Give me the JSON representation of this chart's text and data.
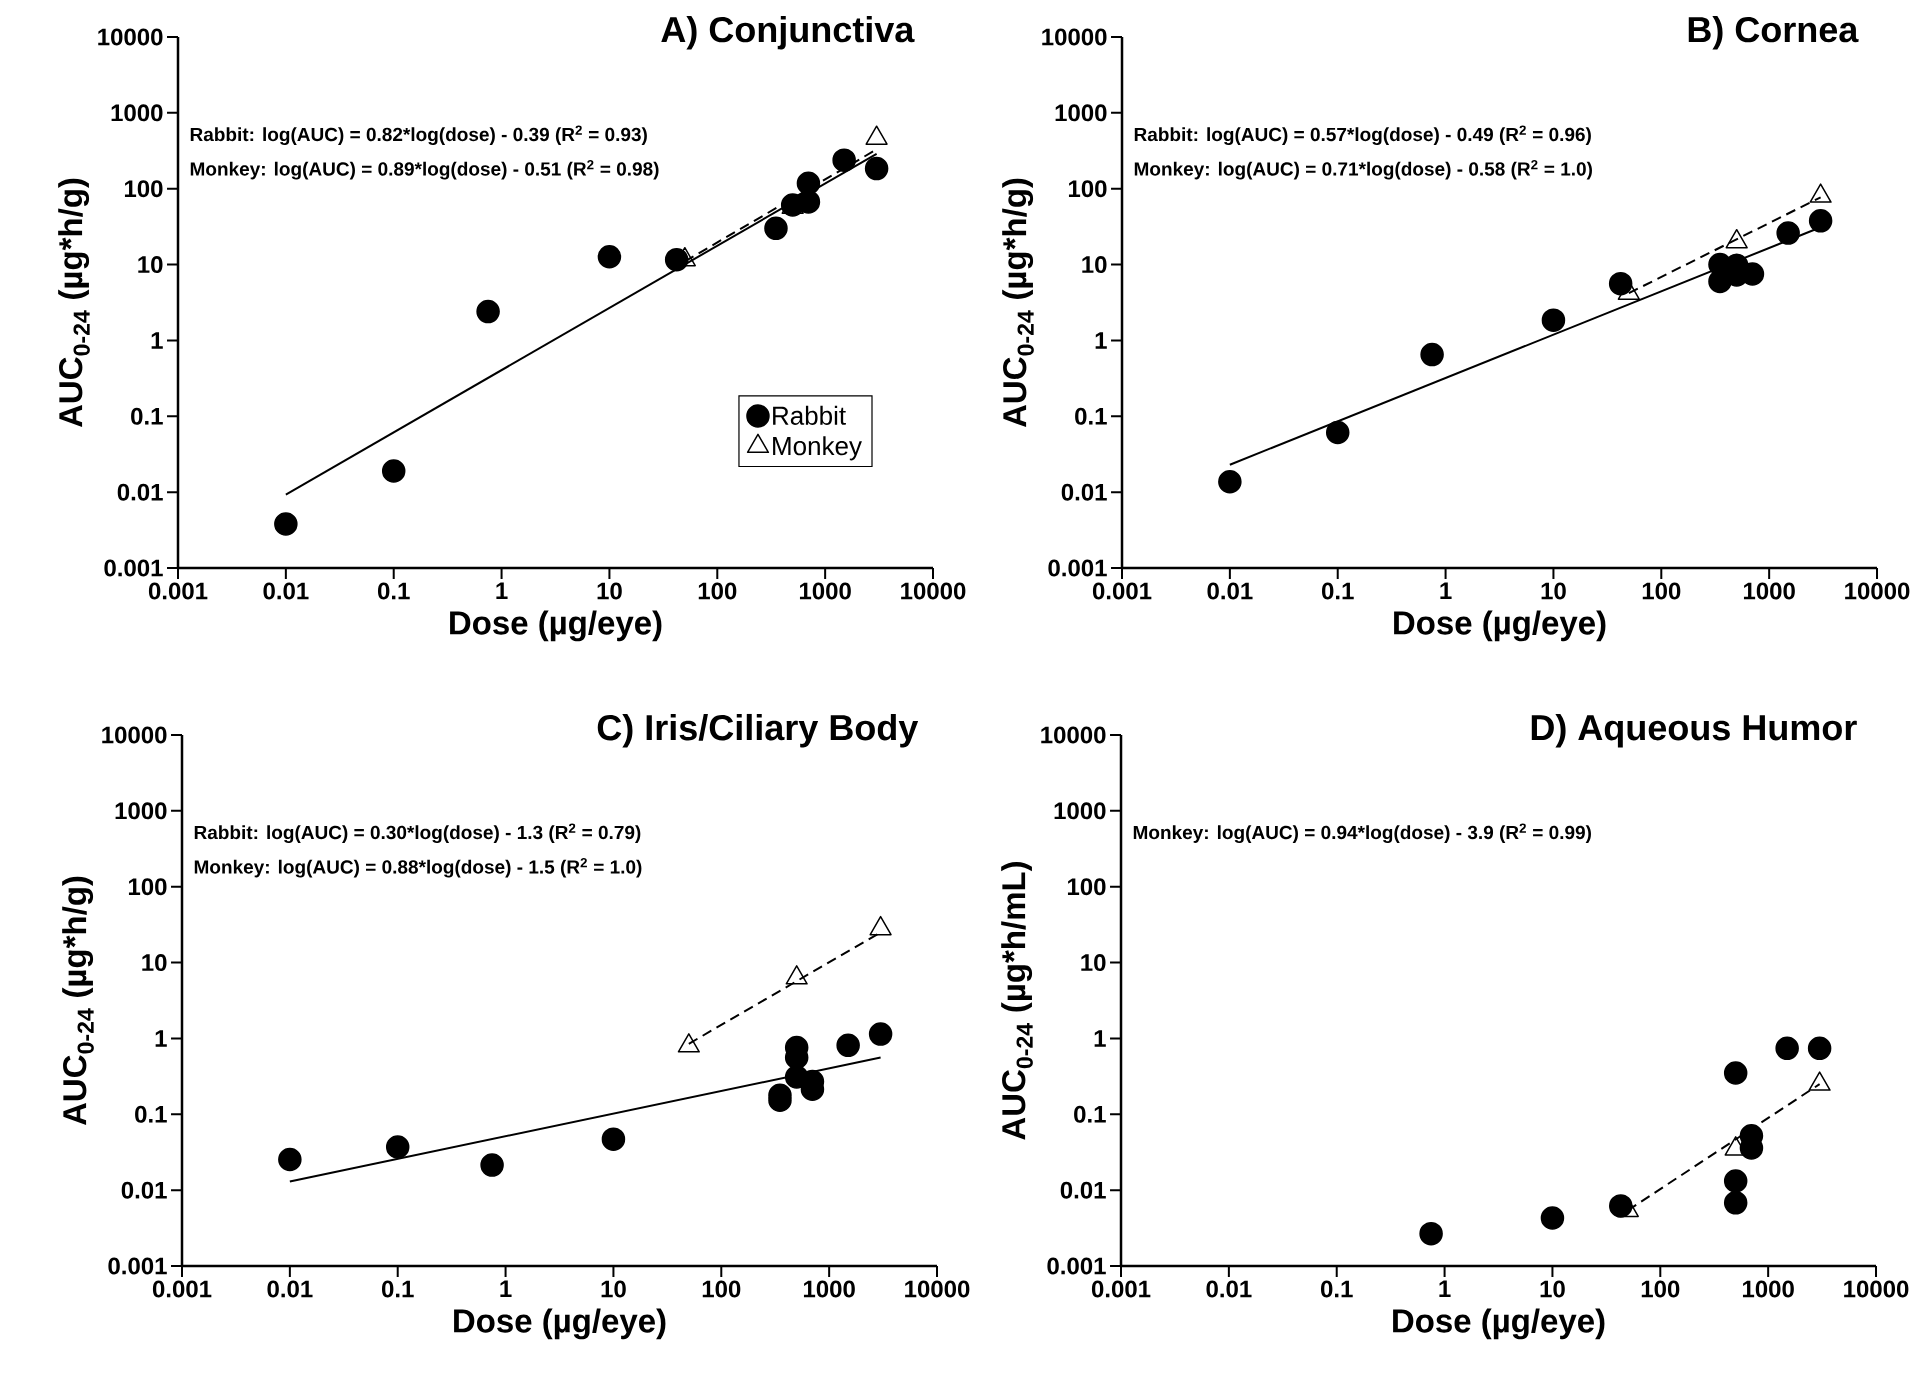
{
  "chart_data": [
    {
      "type": "scatter",
      "title": "A) Conjunctiva",
      "xlabel": "Dose (µg/eye)",
      "ylabel": "AUC$_{0-24}$ (µg*h/g)",
      "log": "xy",
      "legend": "bottom right",
      "xlim": [
        0.001,
        10000
      ],
      "ylim": [
        0.001,
        10000
      ],
      "xticks": [
        0.001,
        0.01,
        0.1,
        1,
        10,
        100,
        1000,
        10000
      ],
      "yticks": [
        0.001,
        0.01,
        0.1,
        1,
        10,
        100,
        1000,
        10000
      ],
      "annotations": [
        "Rabbit: log(AUC) = 0.82*log(dose) - 0.39 (R$^{2}$ = 0.93)",
        "Monkey: log(AUC) = 0.89*log(dose) - 0.51 (R$^{2}$ = 0.98)"
      ],
      "series": [
        {
          "type": "line",
          "color": "#000000",
          "line_style": "solid",
          "marker": "none",
          "x": [
            0.01,
            3000
          ],
          "values": [
            0.0093,
            288
          ]
        },
        {
          "type": "line",
          "color": "#000000",
          "line_style": "dashed",
          "marker": "none",
          "x": [
            50,
            3000
          ],
          "values": [
            11,
            330
          ]
        },
        {
          "name": "Rabbit",
          "color": "#000000",
          "marker": "circle",
          "x": [
            0.01,
            0.1,
            0.75,
            10,
            42,
            350,
            500,
            700,
            700,
            1500,
            3000
          ],
          "values": [
            0.0038,
            0.019,
            2.4,
            12.7,
            11.6,
            30,
            61,
            118,
            67,
            238,
            184
          ]
        },
        {
          "name": "Monkey",
          "color": "#000000",
          "marker": "triangle",
          "x": [
            50,
            500,
            3000
          ],
          "values": [
            11.6,
            57,
            463
          ]
        }
      ]
    },
    {
      "type": "scatter",
      "title": "B) Cornea",
      "xlabel": "Dose (µg/eye)",
      "ylabel": "AUC$_{0-24}$ (µg*h/g)",
      "log": "xy",
      "xlim": [
        0.001,
        10000
      ],
      "ylim": [
        0.001,
        10000
      ],
      "xticks": [
        0.001,
        0.01,
        0.1,
        1,
        10,
        100,
        1000,
        10000
      ],
      "yticks": [
        0.001,
        0.01,
        0.1,
        1,
        10,
        100,
        1000,
        10000
      ],
      "annotations": [
        "Rabbit: log(AUC) = 0.57*log(dose) - 0.49 (R$^{2}$ = 0.96)",
        "Monkey: log(AUC) = 0.71*log(dose) - 0.58 (R$^{2}$ = 1.0)"
      ],
      "series": [
        {
          "type": "line",
          "color": "#000000",
          "line_style": "solid",
          "marker": "none",
          "x": [
            0.01,
            3000
          ],
          "values": [
            0.023,
            31
          ]
        },
        {
          "type": "line",
          "color": "#000000",
          "line_style": "dashed",
          "marker": "none",
          "x": [
            50,
            3000
          ],
          "values": [
            4.2,
            77
          ]
        },
        {
          "color": "#000000",
          "marker": "circle",
          "x": [
            0.01,
            0.1,
            0.75,
            10,
            42,
            350,
            350,
            500,
            500,
            700,
            1500,
            3000
          ],
          "values": [
            0.0137,
            0.061,
            0.65,
            1.85,
            5.6,
            6.0,
            10,
            9.8,
            7.3,
            7.5,
            26,
            37.7
          ]
        },
        {
          "color": "#000000",
          "marker": "triangle",
          "x": [
            50,
            500,
            3000
          ],
          "values": [
            4.2,
            20,
            80
          ]
        }
      ]
    },
    {
      "type": "scatter",
      "title": "C) Iris/Ciliary Body",
      "xlabel": "Dose (µg/eye)",
      "ylabel": "AUC$_{0-24}$ (µg*h/g)",
      "log": "xy",
      "xlim": [
        0.001,
        10000
      ],
      "ylim": [
        0.001,
        10000
      ],
      "xticks": [
        0.001,
        0.01,
        0.1,
        1,
        10,
        100,
        1000,
        10000
      ],
      "yticks": [
        0.001,
        0.01,
        0.1,
        1,
        10,
        100,
        1000,
        10000
      ],
      "annotations": [
        "Rabbit: log(AUC) = 0.30*log(dose) - 1.3 (R$^{2}$ = 0.79)",
        "Monkey: log(AUC) = 0.88*log(dose) - 1.5 (R$^{2}$ = 1.0)"
      ],
      "series": [
        {
          "type": "line",
          "color": "#000000",
          "line_style": "solid",
          "marker": "none",
          "x": [
            0.01,
            3000
          ],
          "values": [
            0.013,
            0.56
          ]
        },
        {
          "type": "line",
          "color": "#000000",
          "line_style": "dashed",
          "marker": "none",
          "x": [
            50,
            3000
          ],
          "values": [
            0.85,
            25
          ]
        },
        {
          "color": "#000000",
          "marker": "circle",
          "x": [
            0.01,
            0.1,
            0.75,
            10,
            350,
            350,
            500,
            500,
            500,
            700,
            700,
            1500,
            3000
          ],
          "values": [
            0.0253,
            0.037,
            0.0214,
            0.047,
            0.178,
            0.153,
            0.76,
            0.56,
            0.31,
            0.27,
            0.214,
            0.81,
            1.14
          ]
        },
        {
          "color": "#000000",
          "marker": "triangle",
          "x": [
            50,
            500,
            3000
          ],
          "values": [
            0.8,
            6.3,
            28
          ]
        }
      ]
    },
    {
      "type": "scatter",
      "title": "D) Aqueous Humor",
      "xlabel": "Dose (µg/eye)",
      "ylabel": "AUC$_{0-24}$ (µg*h/mL)",
      "log": "xy",
      "xlim": [
        0.001,
        10000
      ],
      "ylim": [
        0.001,
        10000
      ],
      "xticks": [
        0.001,
        0.01,
        0.1,
        1,
        10,
        100,
        1000,
        10000
      ],
      "yticks": [
        0.001,
        0.01,
        0.1,
        1,
        10,
        100,
        1000,
        10000
      ],
      "annotations": [
        "Monkey: log(AUC) = 0.94*log(dose) - 3.9 (R$^{2}$ = 0.99)"
      ],
      "series": [
        {
          "type": "line",
          "color": "#000000",
          "line_style": "dashed",
          "marker": "none",
          "x": [
            50,
            3000
          ],
          "values": [
            0.0054,
            0.25
          ]
        },
        {
          "color": "#000000",
          "marker": "circle",
          "x": [
            0.75,
            10,
            43,
            500,
            500,
            500,
            700,
            700,
            1500,
            3000
          ],
          "values": [
            0.00267,
            0.0043,
            0.0062,
            0.35,
            0.0132,
            0.0068,
            0.052,
            0.036,
            0.74,
            0.74
          ]
        },
        {
          "color": "#000000",
          "marker": "triangle",
          "x": [
            50,
            500,
            3000
          ],
          "values": [
            0.0054,
            0.035,
            0.25
          ]
        }
      ]
    }
  ]
}
